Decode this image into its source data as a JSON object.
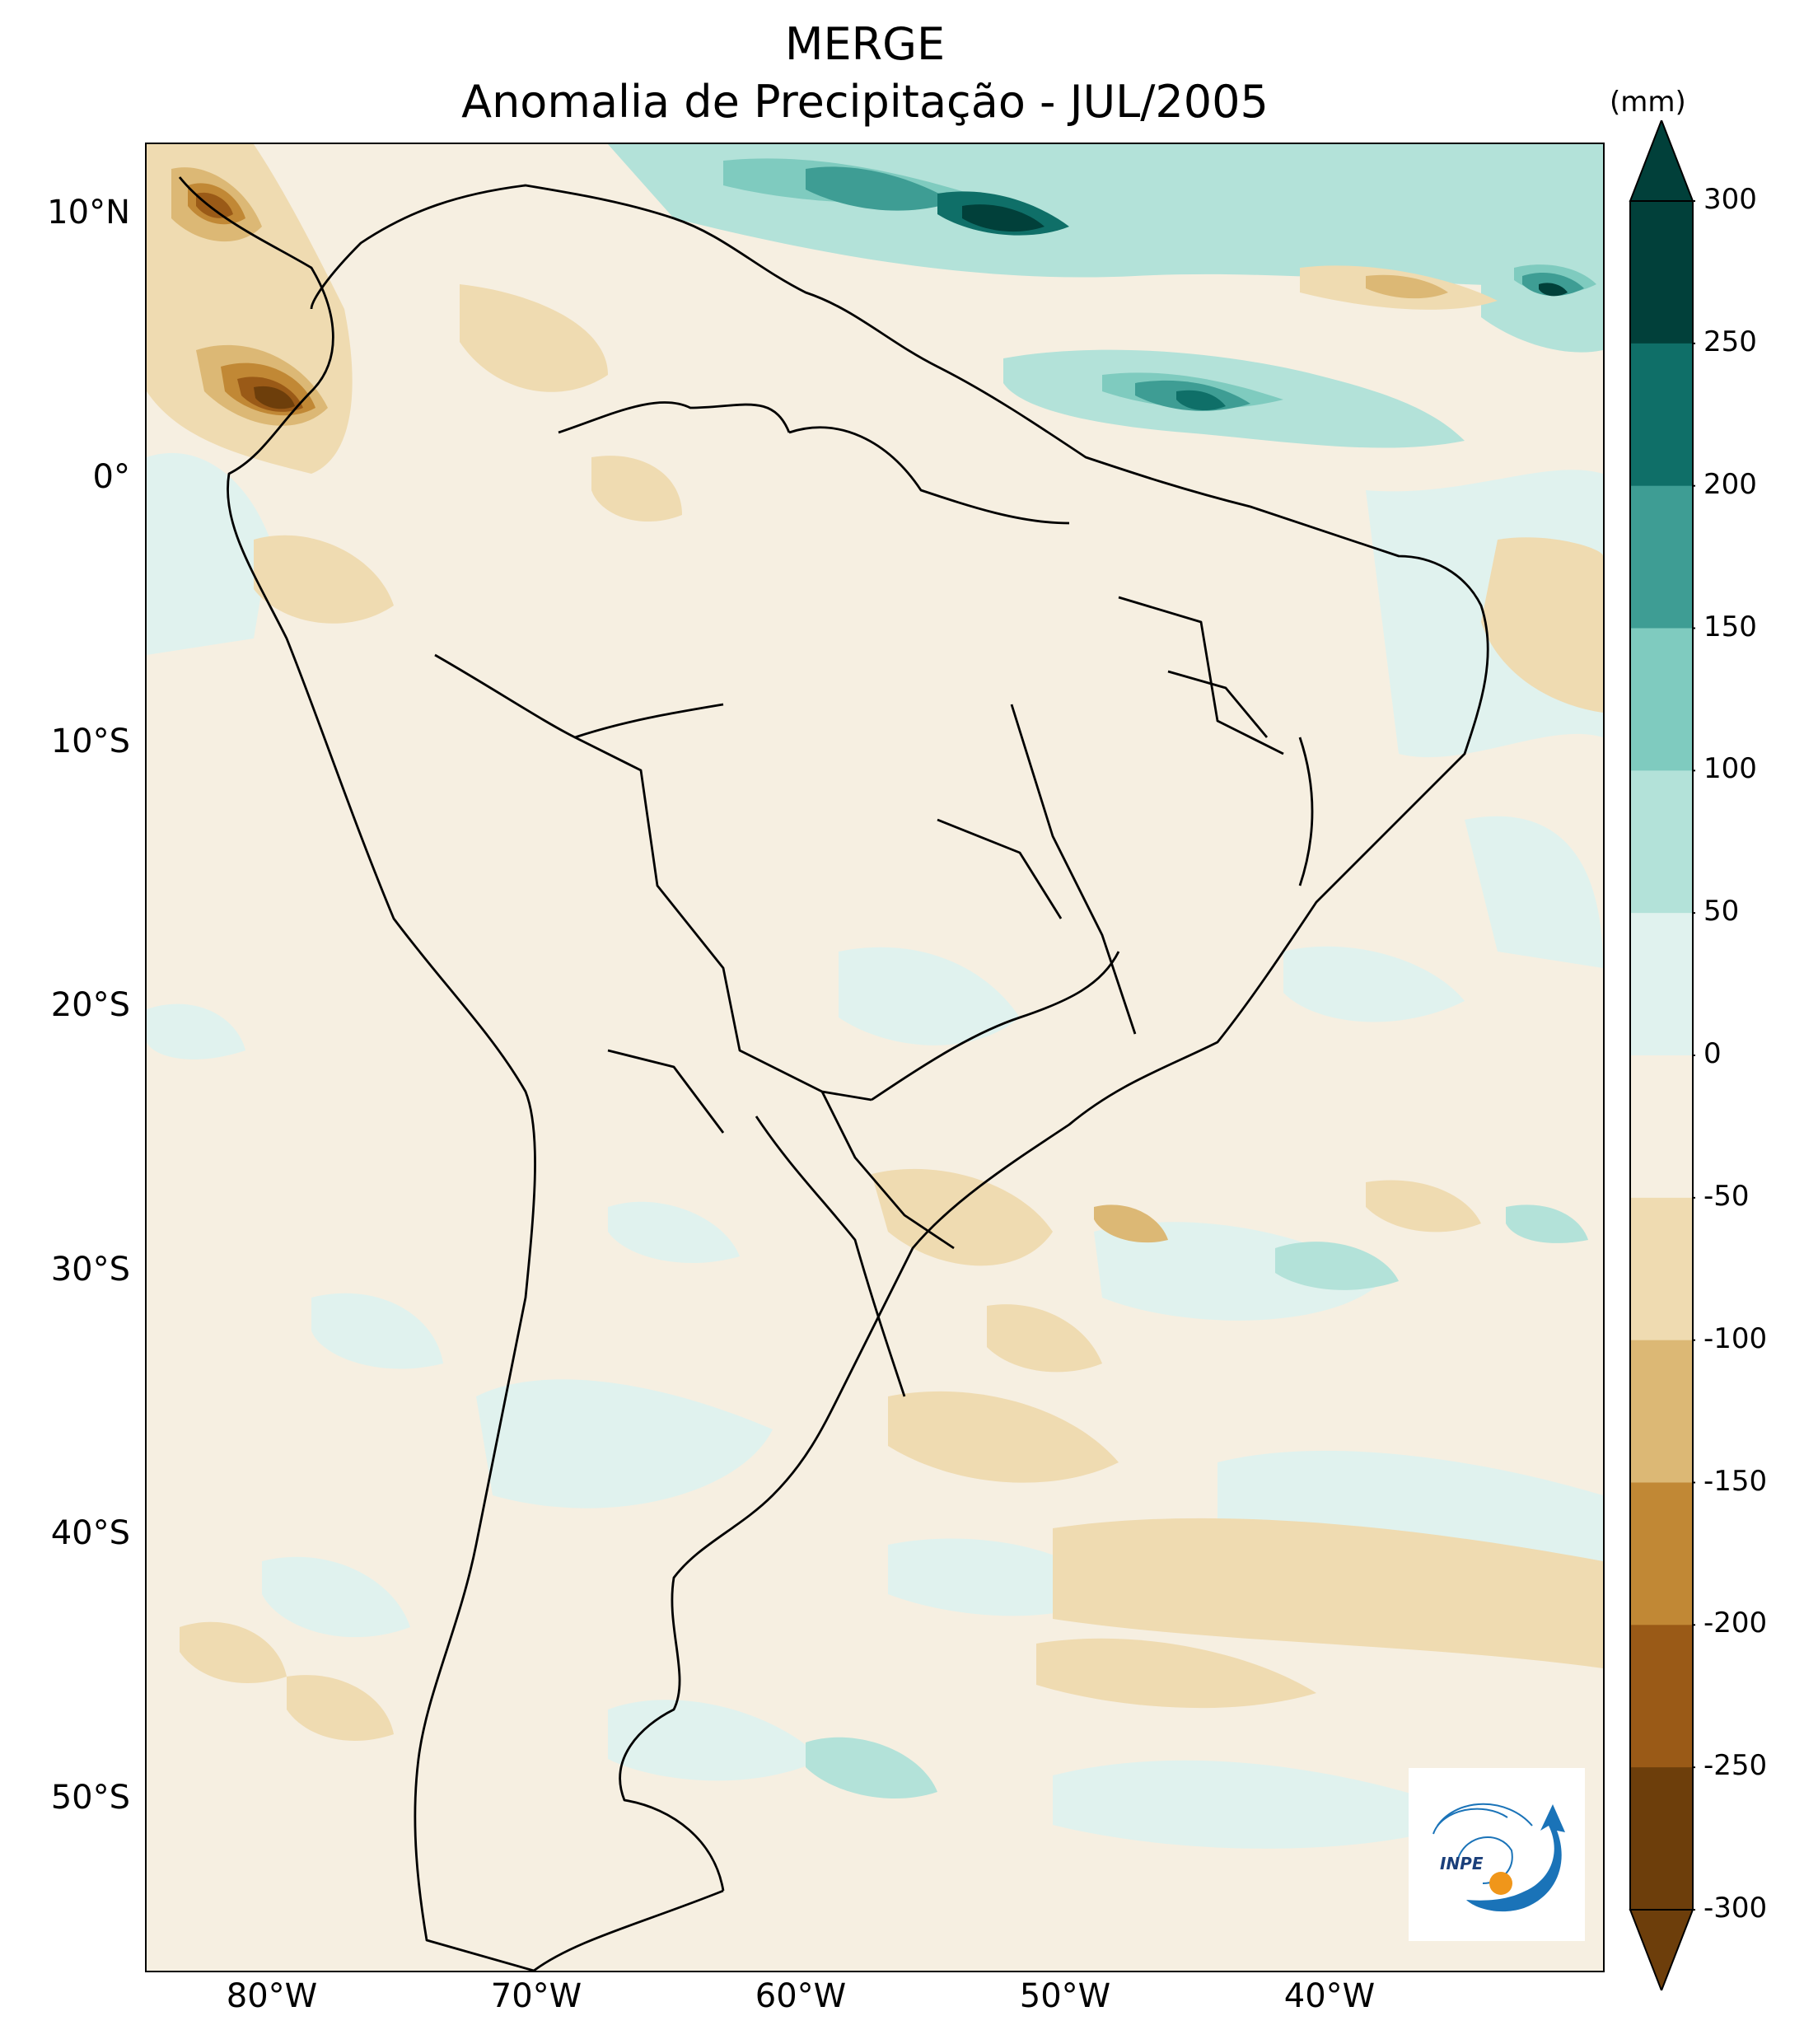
{
  "title": {
    "line1": "MERGE",
    "line2": "Anomalia de Precipitação - JUL/2005"
  },
  "axes": {
    "lat_labels": [
      "10°N",
      "0°",
      "10°S",
      "20°S",
      "30°S",
      "40°S",
      "50°S"
    ],
    "lon_labels": [
      "80°W",
      "70°W",
      "60°W",
      "50°W",
      "40°W"
    ]
  },
  "colorbar": {
    "unit": "(mm)",
    "ticks": [
      "300",
      "250",
      "200",
      "150",
      "100",
      "50",
      "0",
      "-50",
      "-100",
      "-150",
      "-200",
      "-250",
      "-300"
    ],
    "colors": [
      "#01403a",
      "#0f6f68",
      "#3e9d94",
      "#7fcbbf",
      "#b3e2d9",
      "#e0f2ee",
      "#f6efe1",
      "#efdbb1",
      "#dcb875",
      "#c18835",
      "#9a5a17",
      "#6d3e0b"
    ],
    "extend": "both"
  },
  "logo": {
    "text": "INPE"
  }
}
